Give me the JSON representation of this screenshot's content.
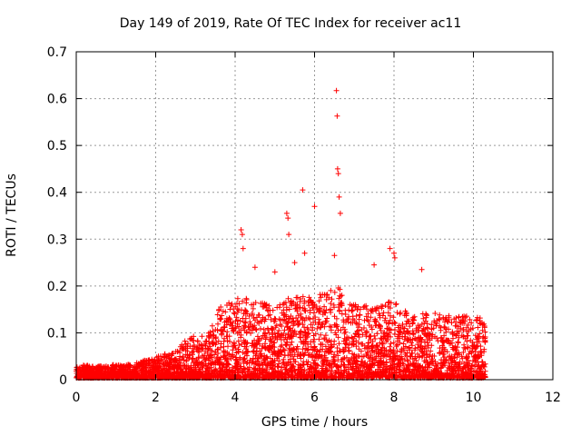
{
  "chart_data": {
    "type": "scatter",
    "title": "Day 149 of 2019, Rate Of TEC Index for receiver ac11",
    "xlabel": "GPS time / hours",
    "ylabel": "ROTI / TECUs",
    "xlim": [
      0,
      12
    ],
    "ylim": [
      0,
      0.7
    ],
    "xticks": [
      0,
      2,
      4,
      6,
      8,
      10,
      12
    ],
    "yticks": [
      0,
      0.1,
      0.2,
      0.3,
      0.4,
      0.5,
      0.6,
      0.7
    ],
    "grid": true,
    "marker": "+",
    "color": "#ff0000",
    "envelope": {
      "description": "approximate upper bound of the dense point cloud, in data units",
      "x": [
        0,
        0.5,
        1,
        1.5,
        2,
        2.5,
        2.8,
        3.3,
        3.6,
        4.0,
        4.5,
        5.0,
        5.5,
        6.0,
        6.5,
        7.0,
        7.5,
        8.0,
        8.5,
        9.0,
        9.5,
        10.0,
        10.3
      ],
      "ymax": [
        0.03,
        0.025,
        0.028,
        0.032,
        0.045,
        0.06,
        0.09,
        0.09,
        0.15,
        0.17,
        0.17,
        0.15,
        0.18,
        0.17,
        0.2,
        0.16,
        0.15,
        0.17,
        0.13,
        0.15,
        0.13,
        0.14,
        0.12
      ]
    },
    "notable_points": {
      "x": [
        4.15,
        4.18,
        4.2,
        4.5,
        5.0,
        5.3,
        5.33,
        5.35,
        5.5,
        5.7,
        5.75,
        6.0,
        6.5,
        6.55,
        6.57,
        6.58,
        6.6,
        6.62,
        6.65,
        7.5,
        7.9,
        8.0,
        8.02,
        8.7
      ],
      "y": [
        0.32,
        0.31,
        0.28,
        0.24,
        0.23,
        0.355,
        0.345,
        0.31,
        0.25,
        0.405,
        0.27,
        0.37,
        0.265,
        0.617,
        0.563,
        0.45,
        0.44,
        0.39,
        0.355,
        0.245,
        0.28,
        0.27,
        0.26,
        0.235
      ]
    }
  }
}
